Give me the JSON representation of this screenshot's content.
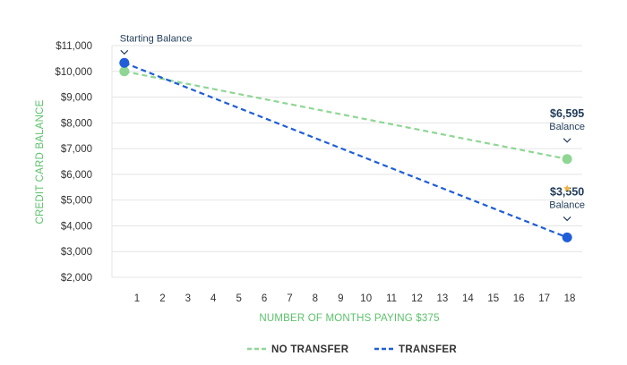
{
  "chart_data": {
    "type": "line",
    "xlabel": "NUMBER OF MONTHS PAYING $375",
    "ylabel": "CREDIT CARD BALANCE",
    "x_ticks": [
      1,
      2,
      3,
      4,
      5,
      6,
      7,
      8,
      9,
      10,
      11,
      12,
      13,
      14,
      15,
      16,
      17,
      18
    ],
    "y_ticks": [
      "$11,000",
      "$10,000",
      "$9,000",
      "$8,000",
      "$7,000",
      "$6,000",
      "$5,000",
      "$4,000",
      "$3,000",
      "$2,000"
    ],
    "y_tick_values": [
      11000,
      10000,
      9000,
      8000,
      7000,
      6000,
      5000,
      4000,
      3000,
      2000
    ],
    "xlim": [
      0,
      18.5
    ],
    "ylim": [
      2000,
      11000
    ],
    "grid": "horizontal",
    "legend_position": "bottom-center",
    "series": [
      {
        "name": "NO TRANSFER",
        "color": "#8fd694",
        "style": "dashed",
        "x": [
          0.5,
          17.9
        ],
        "y": [
          10000,
          6595
        ]
      },
      {
        "name": "TRANSFER",
        "color": "#1f5ed8",
        "style": "dashed",
        "x": [
          0.5,
          17.9
        ],
        "y": [
          10330,
          3550
        ]
      }
    ],
    "annotations": [
      {
        "id": "start",
        "text": "Starting Balance",
        "x": 0.5,
        "y": 10330
      },
      {
        "id": "no_transfer_end",
        "value": "$6,595",
        "text": "Balance",
        "x": 17.9,
        "y": 6595
      },
      {
        "id": "transfer_end",
        "value": "$3,550",
        "text": "Balance",
        "x": 17.9,
        "y": 3550
      }
    ],
    "star_marker": {
      "x": 17.9,
      "y": 5450,
      "color": "#f2b33d"
    }
  }
}
